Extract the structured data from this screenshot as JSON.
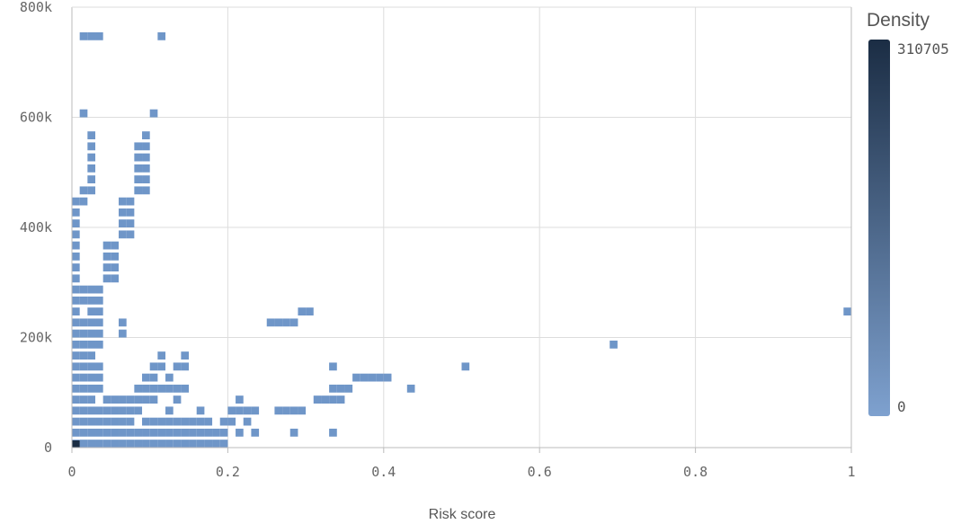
{
  "chart_data": {
    "type": "heatmap",
    "xlabel": "Risk score",
    "ylabel": "",
    "xlim": [
      0,
      1
    ],
    "ylim": [
      0,
      800000
    ],
    "x_ticks": [
      "0",
      "0.2",
      "0.4",
      "0.6",
      "0.8",
      "1"
    ],
    "y_ticks": [
      "0",
      "200k",
      "400k",
      "600k",
      "800k"
    ],
    "grid": true,
    "legend": {
      "title": "Density",
      "max": "310705",
      "min": "0",
      "position": "right"
    },
    "colors": {
      "low": "#7ea1cf",
      "high": "#1b2d44",
      "grid": "#dddddd",
      "cell": "#6f96c8"
    },
    "bin_size": {
      "x": 0.01,
      "y": 20000
    },
    "cells": [
      [
        0.0,
        0
      ],
      [
        0.01,
        0
      ],
      [
        0.02,
        0
      ],
      [
        0.03,
        0
      ],
      [
        0.04,
        0
      ],
      [
        0.05,
        0
      ],
      [
        0.06,
        0
      ],
      [
        0.07,
        0
      ],
      [
        0.08,
        0
      ],
      [
        0.09,
        0
      ],
      [
        0.1,
        0
      ],
      [
        0.11,
        0
      ],
      [
        0.12,
        0
      ],
      [
        0.13,
        0
      ],
      [
        0.14,
        0
      ],
      [
        0.15,
        0
      ],
      [
        0.16,
        0
      ],
      [
        0.17,
        0
      ],
      [
        0.18,
        0
      ],
      [
        0.19,
        0
      ],
      [
        0.0,
        20000
      ],
      [
        0.01,
        20000
      ],
      [
        0.02,
        20000
      ],
      [
        0.03,
        20000
      ],
      [
        0.04,
        20000
      ],
      [
        0.05,
        20000
      ],
      [
        0.06,
        20000
      ],
      [
        0.07,
        20000
      ],
      [
        0.08,
        20000
      ],
      [
        0.09,
        20000
      ],
      [
        0.1,
        20000
      ],
      [
        0.11,
        20000
      ],
      [
        0.12,
        20000
      ],
      [
        0.13,
        20000
      ],
      [
        0.14,
        20000
      ],
      [
        0.15,
        20000
      ],
      [
        0.16,
        20000
      ],
      [
        0.17,
        20000
      ],
      [
        0.18,
        20000
      ],
      [
        0.19,
        20000
      ],
      [
        0.21,
        20000
      ],
      [
        0.23,
        20000
      ],
      [
        0.28,
        20000
      ],
      [
        0.33,
        20000
      ],
      [
        0.0,
        40000
      ],
      [
        0.01,
        40000
      ],
      [
        0.02,
        40000
      ],
      [
        0.03,
        40000
      ],
      [
        0.04,
        40000
      ],
      [
        0.05,
        40000
      ],
      [
        0.06,
        40000
      ],
      [
        0.07,
        40000
      ],
      [
        0.09,
        40000
      ],
      [
        0.1,
        40000
      ],
      [
        0.11,
        40000
      ],
      [
        0.12,
        40000
      ],
      [
        0.13,
        40000
      ],
      [
        0.14,
        40000
      ],
      [
        0.15,
        40000
      ],
      [
        0.16,
        40000
      ],
      [
        0.17,
        40000
      ],
      [
        0.19,
        40000
      ],
      [
        0.2,
        40000
      ],
      [
        0.22,
        40000
      ],
      [
        0.0,
        60000
      ],
      [
        0.01,
        60000
      ],
      [
        0.02,
        60000
      ],
      [
        0.03,
        60000
      ],
      [
        0.04,
        60000
      ],
      [
        0.05,
        60000
      ],
      [
        0.06,
        60000
      ],
      [
        0.07,
        60000
      ],
      [
        0.08,
        60000
      ],
      [
        0.12,
        60000
      ],
      [
        0.16,
        60000
      ],
      [
        0.2,
        60000
      ],
      [
        0.21,
        60000
      ],
      [
        0.22,
        60000
      ],
      [
        0.23,
        60000
      ],
      [
        0.26,
        60000
      ],
      [
        0.27,
        60000
      ],
      [
        0.28,
        60000
      ],
      [
        0.29,
        60000
      ],
      [
        0.0,
        80000
      ],
      [
        0.01,
        80000
      ],
      [
        0.02,
        80000
      ],
      [
        0.04,
        80000
      ],
      [
        0.05,
        80000
      ],
      [
        0.06,
        80000
      ],
      [
        0.07,
        80000
      ],
      [
        0.08,
        80000
      ],
      [
        0.09,
        80000
      ],
      [
        0.1,
        80000
      ],
      [
        0.13,
        80000
      ],
      [
        0.21,
        80000
      ],
      [
        0.31,
        80000
      ],
      [
        0.32,
        80000
      ],
      [
        0.33,
        80000
      ],
      [
        0.34,
        80000
      ],
      [
        0.0,
        100000
      ],
      [
        0.01,
        100000
      ],
      [
        0.02,
        100000
      ],
      [
        0.03,
        100000
      ],
      [
        0.08,
        100000
      ],
      [
        0.09,
        100000
      ],
      [
        0.1,
        100000
      ],
      [
        0.11,
        100000
      ],
      [
        0.12,
        100000
      ],
      [
        0.13,
        100000
      ],
      [
        0.14,
        100000
      ],
      [
        0.33,
        100000
      ],
      [
        0.34,
        100000
      ],
      [
        0.35,
        100000
      ],
      [
        0.43,
        100000
      ],
      [
        0.0,
        120000
      ],
      [
        0.01,
        120000
      ],
      [
        0.02,
        120000
      ],
      [
        0.03,
        120000
      ],
      [
        0.09,
        120000
      ],
      [
        0.1,
        120000
      ],
      [
        0.12,
        120000
      ],
      [
        0.36,
        120000
      ],
      [
        0.37,
        120000
      ],
      [
        0.38,
        120000
      ],
      [
        0.39,
        120000
      ],
      [
        0.4,
        120000
      ],
      [
        0.0,
        140000
      ],
      [
        0.01,
        140000
      ],
      [
        0.02,
        140000
      ],
      [
        0.03,
        140000
      ],
      [
        0.1,
        140000
      ],
      [
        0.11,
        140000
      ],
      [
        0.13,
        140000
      ],
      [
        0.14,
        140000
      ],
      [
        0.33,
        140000
      ],
      [
        0.5,
        140000
      ],
      [
        0.0,
        160000
      ],
      [
        0.01,
        160000
      ],
      [
        0.02,
        160000
      ],
      [
        0.11,
        160000
      ],
      [
        0.14,
        160000
      ],
      [
        0.0,
        180000
      ],
      [
        0.01,
        180000
      ],
      [
        0.02,
        180000
      ],
      [
        0.03,
        180000
      ],
      [
        0.69,
        180000
      ],
      [
        0.0,
        200000
      ],
      [
        0.01,
        200000
      ],
      [
        0.02,
        200000
      ],
      [
        0.03,
        200000
      ],
      [
        0.06,
        200000
      ],
      [
        0.0,
        220000
      ],
      [
        0.01,
        220000
      ],
      [
        0.02,
        220000
      ],
      [
        0.03,
        220000
      ],
      [
        0.06,
        220000
      ],
      [
        0.25,
        220000
      ],
      [
        0.26,
        220000
      ],
      [
        0.27,
        220000
      ],
      [
        0.28,
        220000
      ],
      [
        0.0,
        240000
      ],
      [
        0.02,
        240000
      ],
      [
        0.03,
        240000
      ],
      [
        0.29,
        240000
      ],
      [
        0.3,
        240000
      ],
      [
        0.99,
        240000
      ],
      [
        0.0,
        260000
      ],
      [
        0.01,
        260000
      ],
      [
        0.02,
        260000
      ],
      [
        0.03,
        260000
      ],
      [
        0.0,
        280000
      ],
      [
        0.01,
        280000
      ],
      [
        0.02,
        280000
      ],
      [
        0.03,
        280000
      ],
      [
        0.0,
        300000
      ],
      [
        0.04,
        300000
      ],
      [
        0.05,
        300000
      ],
      [
        0.0,
        320000
      ],
      [
        0.04,
        320000
      ],
      [
        0.05,
        320000
      ],
      [
        0.0,
        340000
      ],
      [
        0.04,
        340000
      ],
      [
        0.05,
        340000
      ],
      [
        0.0,
        360000
      ],
      [
        0.04,
        360000
      ],
      [
        0.05,
        360000
      ],
      [
        0.0,
        380000
      ],
      [
        0.06,
        380000
      ],
      [
        0.07,
        380000
      ],
      [
        0.0,
        400000
      ],
      [
        0.06,
        400000
      ],
      [
        0.07,
        400000
      ],
      [
        0.0,
        420000
      ],
      [
        0.06,
        420000
      ],
      [
        0.07,
        420000
      ],
      [
        0.0,
        440000
      ],
      [
        0.01,
        440000
      ],
      [
        0.06,
        440000
      ],
      [
        0.07,
        440000
      ],
      [
        0.01,
        460000
      ],
      [
        0.02,
        460000
      ],
      [
        0.08,
        460000
      ],
      [
        0.09,
        460000
      ],
      [
        0.02,
        480000
      ],
      [
        0.08,
        480000
      ],
      [
        0.09,
        480000
      ],
      [
        0.02,
        500000
      ],
      [
        0.08,
        500000
      ],
      [
        0.09,
        500000
      ],
      [
        0.02,
        520000
      ],
      [
        0.08,
        520000
      ],
      [
        0.09,
        520000
      ],
      [
        0.02,
        540000
      ],
      [
        0.08,
        540000
      ],
      [
        0.09,
        540000
      ],
      [
        0.02,
        560000
      ],
      [
        0.09,
        560000
      ],
      [
        0.01,
        600000
      ],
      [
        0.1,
        600000
      ],
      [
        0.01,
        740000
      ],
      [
        0.02,
        740000
      ],
      [
        0.03,
        740000
      ],
      [
        0.11,
        740000
      ]
    ],
    "peak_cell": [
      0.0,
      0
    ]
  }
}
